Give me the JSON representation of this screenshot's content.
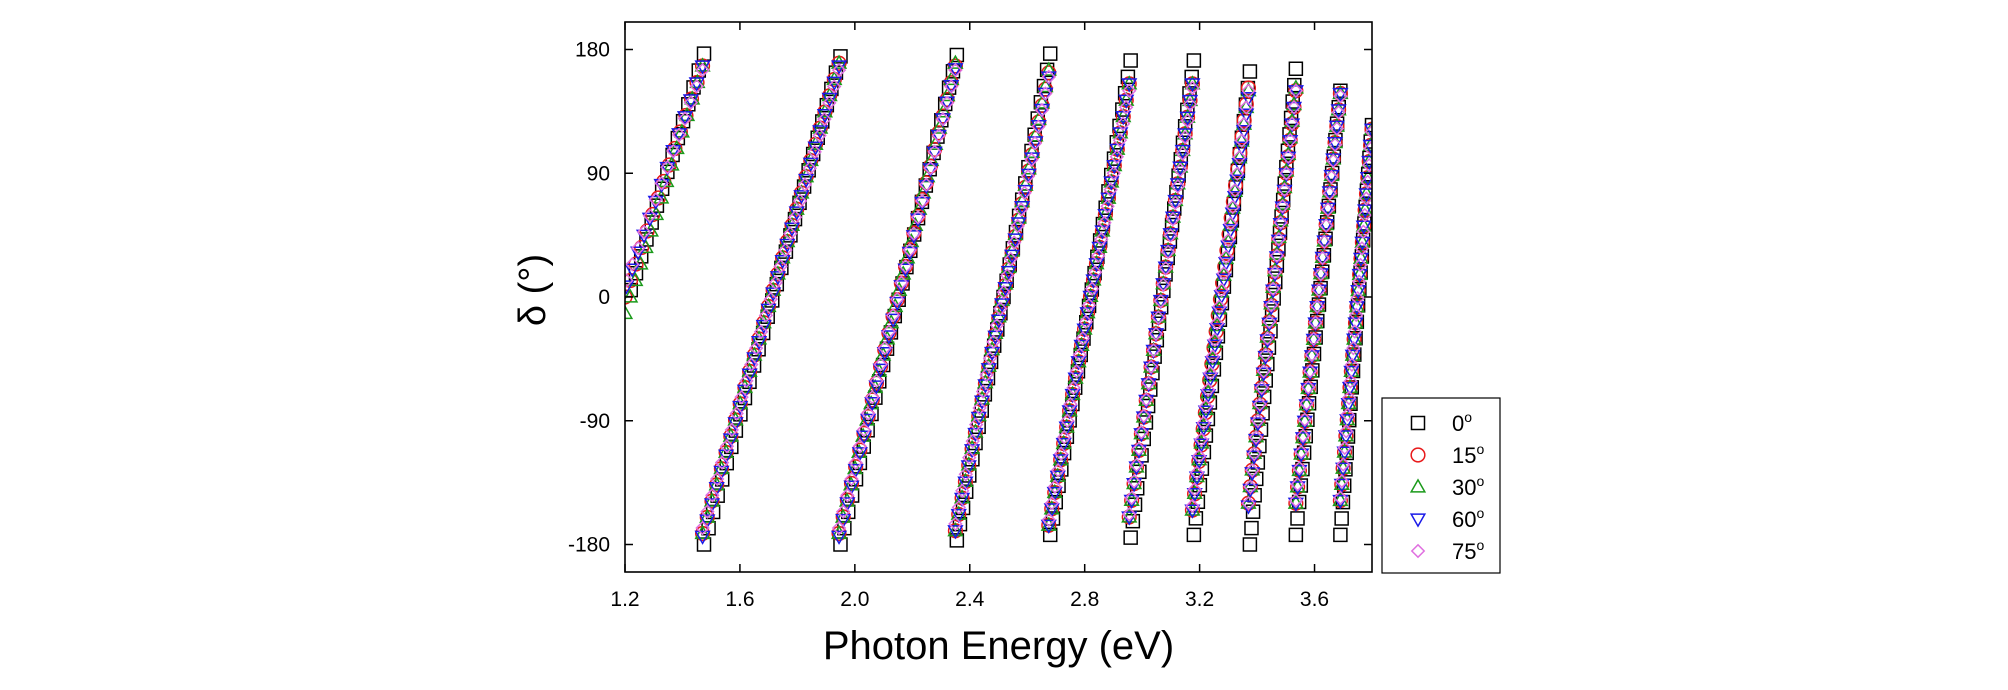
{
  "chart_data": {
    "type": "scatter",
    "xlabel": "Photon Energy (eV)",
    "ylabel": "δ (°)",
    "xlim": [
      1.2,
      3.8
    ],
    "ylim": [
      -200,
      200
    ],
    "x_ticks": [
      1.2,
      1.6,
      2.0,
      2.4,
      2.8,
      3.2,
      3.6
    ],
    "x_tick_labels": [
      "1.2",
      "1.6",
      "2.0",
      "2.4",
      "2.8",
      "3.2",
      "3.6"
    ],
    "y_ticks": [
      180,
      90,
      0,
      -90,
      -180
    ],
    "y_tick_labels": [
      "180",
      "90",
      "0",
      "-90",
      "-180"
    ],
    "grid": false,
    "legend_position": "outside-bottom-right",
    "legend": {
      "entries": [
        {
          "label": "0",
          "sup": "o",
          "marker": "square",
          "color": "#000000"
        },
        {
          "label": "15",
          "sup": "o",
          "marker": "circle",
          "color": "#e8191a"
        },
        {
          "label": "30",
          "sup": "o",
          "marker": "triangle-up",
          "color": "#1a9a1a"
        },
        {
          "label": "60",
          "sup": "o",
          "marker": "triangle-down",
          "color": "#1a1ae8"
        },
        {
          "label": "75",
          "sup": "o",
          "marker": "diamond",
          "color": "#e070e0"
        }
      ]
    },
    "series": [
      {
        "marker": "square",
        "color": "#000000",
        "branches": [
          {
            "x0": 1.22,
            "x1": 1.475,
            "y0": 5,
            "y1": 177
          },
          {
            "x0": 1.475,
            "x1": 1.95,
            "y0": -180,
            "y1": 175
          },
          {
            "x0": 1.95,
            "x1": 2.355,
            "y0": -180,
            "y1": 176
          },
          {
            "x0": 2.355,
            "x1": 2.68,
            "y0": -177,
            "y1": 177
          },
          {
            "x0": 2.68,
            "x1": 2.96,
            "y0": -173,
            "y1": 172
          },
          {
            "x0": 2.96,
            "x1": 3.18,
            "y0": -175,
            "y1": 172
          },
          {
            "x0": 3.18,
            "x1": 3.375,
            "y0": -173,
            "y1": 164
          },
          {
            "x0": 3.375,
            "x1": 3.535,
            "y0": -180,
            "y1": 166
          },
          {
            "x0": 3.535,
            "x1": 3.69,
            "y0": -173,
            "y1": 150
          },
          {
            "x0": 3.69,
            "x1": 3.8,
            "y0": -173,
            "y1": 125
          }
        ]
      },
      {
        "marker": "circle",
        "color": "#e8191a",
        "branches": [
          {
            "x0": 1.2,
            "x1": 1.47,
            "y0": 0,
            "y1": 168
          },
          {
            "x0": 1.47,
            "x1": 1.945,
            "y0": -172,
            "y1": 170
          },
          {
            "x0": 1.945,
            "x1": 2.35,
            "y0": -172,
            "y1": 168
          },
          {
            "x0": 2.35,
            "x1": 2.675,
            "y0": -170,
            "y1": 163
          },
          {
            "x0": 2.675,
            "x1": 2.955,
            "y0": -166,
            "y1": 155
          },
          {
            "x0": 2.955,
            "x1": 3.175,
            "y0": -160,
            "y1": 155
          },
          {
            "x0": 3.175,
            "x1": 3.37,
            "y0": -155,
            "y1": 152
          },
          {
            "x0": 3.37,
            "x1": 3.535,
            "y0": -150,
            "y1": 150
          },
          {
            "x0": 3.535,
            "x1": 3.69,
            "y0": -150,
            "y1": 148
          },
          {
            "x0": 3.69,
            "x1": 3.8,
            "y0": -148,
            "y1": 122
          }
        ]
      },
      {
        "marker": "triangle-up",
        "color": "#1a9a1a",
        "branches": [
          {
            "x0": 1.2,
            "x1": 1.47,
            "y0": -12,
            "y1": 168
          },
          {
            "x0": 1.47,
            "x1": 1.945,
            "y0": -172,
            "y1": 170
          },
          {
            "x0": 1.945,
            "x1": 2.35,
            "y0": -172,
            "y1": 170
          },
          {
            "x0": 2.35,
            "x1": 2.675,
            "y0": -170,
            "y1": 165
          },
          {
            "x0": 2.675,
            "x1": 2.955,
            "y0": -166,
            "y1": 155
          },
          {
            "x0": 2.955,
            "x1": 3.175,
            "y0": -160,
            "y1": 155
          },
          {
            "x0": 3.175,
            "x1": 3.37,
            "y0": -155,
            "y1": 150
          },
          {
            "x0": 3.37,
            "x1": 3.535,
            "y0": -150,
            "y1": 152
          },
          {
            "x0": 3.535,
            "x1": 3.69,
            "y0": -150,
            "y1": 148
          },
          {
            "x0": 3.69,
            "x1": 3.8,
            "y0": -148,
            "y1": 122
          }
        ]
      },
      {
        "marker": "triangle-down",
        "color": "#1a1ae8",
        "branches": [
          {
            "x0": 1.205,
            "x1": 1.47,
            "y0": 8,
            "y1": 168
          },
          {
            "x0": 1.47,
            "x1": 1.945,
            "y0": -174,
            "y1": 168
          },
          {
            "x0": 1.945,
            "x1": 2.35,
            "y0": -174,
            "y1": 166
          },
          {
            "x0": 2.35,
            "x1": 2.675,
            "y0": -170,
            "y1": 160
          },
          {
            "x0": 2.675,
            "x1": 2.955,
            "y0": -166,
            "y1": 155
          },
          {
            "x0": 2.955,
            "x1": 3.175,
            "y0": -160,
            "y1": 155
          },
          {
            "x0": 3.175,
            "x1": 3.37,
            "y0": -155,
            "y1": 145
          },
          {
            "x0": 3.37,
            "x1": 3.535,
            "y0": -152,
            "y1": 150
          },
          {
            "x0": 3.535,
            "x1": 3.69,
            "y0": -150,
            "y1": 148
          },
          {
            "x0": 3.69,
            "x1": 3.8,
            "y0": -148,
            "y1": 122
          }
        ]
      },
      {
        "marker": "diamond",
        "color": "#e070e0",
        "branches": [
          {
            "x0": 1.205,
            "x1": 1.47,
            "y0": 12,
            "y1": 165
          },
          {
            "x0": 1.47,
            "x1": 1.945,
            "y0": -168,
            "y1": 165
          },
          {
            "x0": 1.945,
            "x1": 2.35,
            "y0": -168,
            "y1": 165
          },
          {
            "x0": 2.35,
            "x1": 2.675,
            "y0": -165,
            "y1": 160
          },
          {
            "x0": 2.675,
            "x1": 2.955,
            "y0": -162,
            "y1": 150
          },
          {
            "x0": 2.955,
            "x1": 3.175,
            "y0": -158,
            "y1": 152
          },
          {
            "x0": 3.175,
            "x1": 3.37,
            "y0": -152,
            "y1": 150
          },
          {
            "x0": 3.37,
            "x1": 3.535,
            "y0": -150,
            "y1": 150
          },
          {
            "x0": 3.535,
            "x1": 3.69,
            "y0": -148,
            "y1": 146
          },
          {
            "x0": 3.69,
            "x1": 3.8,
            "y0": -146,
            "y1": 120
          }
        ]
      }
    ]
  }
}
